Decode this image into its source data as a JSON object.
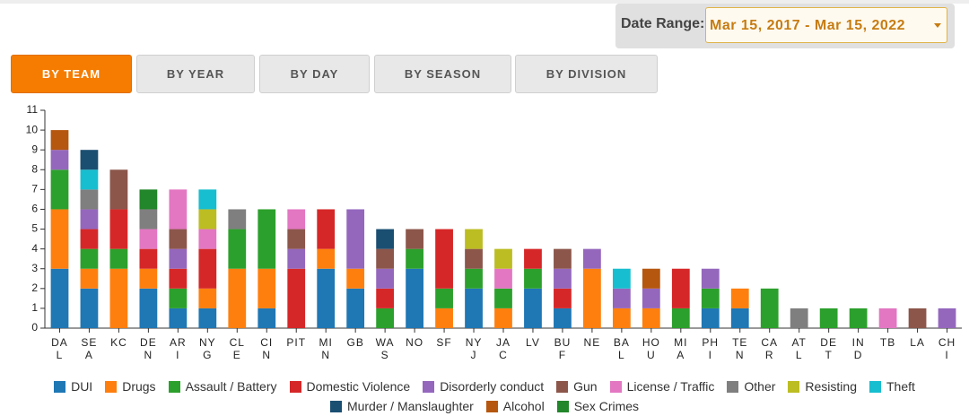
{
  "ui": {
    "date_label": "Date Range:",
    "date_value": "Mar 15, 2017 - Mar 15, 2022",
    "tabs": [
      "BY TEAM",
      "BY YEAR",
      "BY DAY",
      "BY SEASON",
      "BY DIVISION"
    ]
  },
  "chart_data": {
    "type": "stacked_bar",
    "categories": [
      "DAL",
      "SEA",
      "KC",
      "DEN",
      "ARI",
      "NYG",
      "CLE",
      "CIN",
      "PIT",
      "MIN",
      "GB",
      "WAS",
      "NO",
      "SF",
      "NYJ",
      "JAC",
      "LV",
      "BUF",
      "NE",
      "BAL",
      "HOU",
      "MIA",
      "PHI",
      "TEN",
      "CAR",
      "ATL",
      "DET",
      "IND",
      "TB",
      "LA",
      "CHI"
    ],
    "ylim": [
      0,
      11
    ],
    "yticks": [
      0,
      1,
      2,
      3,
      4,
      5,
      6,
      7,
      8,
      9,
      10,
      11
    ],
    "series": [
      {
        "name": "DUI",
        "color": "#1f77b4",
        "values": [
          3,
          2,
          0,
          2,
          1,
          1,
          0,
          1,
          0,
          3,
          2,
          0,
          3,
          0,
          2,
          0,
          2,
          1,
          0,
          0,
          0,
          0,
          1,
          1,
          0,
          0,
          0,
          0,
          0,
          0,
          0
        ]
      },
      {
        "name": "Drugs",
        "color": "#ff7f0e",
        "values": [
          3,
          1,
          3,
          1,
          0,
          1,
          3,
          2,
          0,
          1,
          1,
          0,
          0,
          1,
          0,
          1,
          0,
          0,
          3,
          1,
          1,
          0,
          0,
          1,
          0,
          0,
          0,
          0,
          0,
          0,
          0
        ]
      },
      {
        "name": "Assault / Battery",
        "color": "#2ca02c",
        "values": [
          2,
          1,
          1,
          0,
          1,
          0,
          2,
          3,
          0,
          0,
          0,
          1,
          1,
          1,
          1,
          1,
          1,
          0,
          0,
          0,
          0,
          1,
          1,
          0,
          2,
          0,
          1,
          1,
          0,
          0,
          0
        ]
      },
      {
        "name": "Domestic Violence",
        "color": "#d62728",
        "values": [
          0,
          1,
          2,
          1,
          1,
          2,
          0,
          0,
          3,
          2,
          0,
          1,
          0,
          3,
          0,
          0,
          1,
          1,
          0,
          0,
          0,
          2,
          0,
          0,
          0,
          0,
          0,
          0,
          0,
          0,
          0
        ]
      },
      {
        "name": "Disorderly conduct",
        "color": "#9467bd",
        "values": [
          1,
          1,
          0,
          0,
          1,
          0,
          0,
          0,
          1,
          0,
          3,
          1,
          0,
          0,
          0,
          0,
          0,
          1,
          1,
          1,
          1,
          0,
          1,
          0,
          0,
          0,
          0,
          0,
          0,
          0,
          1
        ]
      },
      {
        "name": "Gun",
        "color": "#8c564b",
        "values": [
          0,
          0,
          2,
          0,
          1,
          0,
          0,
          0,
          1,
          0,
          0,
          1,
          1,
          0,
          1,
          0,
          0,
          1,
          0,
          0,
          0,
          0,
          0,
          0,
          0,
          0,
          0,
          0,
          0,
          1,
          0
        ]
      },
      {
        "name": "License / Traffic",
        "color": "#e377c2",
        "values": [
          0,
          0,
          0,
          1,
          2,
          1,
          0,
          0,
          1,
          0,
          0,
          0,
          0,
          0,
          0,
          1,
          0,
          0,
          0,
          0,
          0,
          0,
          0,
          0,
          0,
          0,
          0,
          0,
          1,
          0,
          0
        ]
      },
      {
        "name": "Other",
        "color": "#7f7f7f",
        "values": [
          0,
          1,
          0,
          1,
          0,
          0,
          1,
          0,
          0,
          0,
          0,
          0,
          0,
          0,
          0,
          0,
          0,
          0,
          0,
          0,
          0,
          0,
          0,
          0,
          0,
          1,
          0,
          0,
          0,
          0,
          0
        ]
      },
      {
        "name": "Resisting",
        "color": "#bcbd22",
        "values": [
          0,
          0,
          0,
          0,
          0,
          1,
          0,
          0,
          0,
          0,
          0,
          0,
          0,
          0,
          1,
          1,
          0,
          0,
          0,
          0,
          0,
          0,
          0,
          0,
          0,
          0,
          0,
          0,
          0,
          0,
          0
        ]
      },
      {
        "name": "Theft",
        "color": "#17becf",
        "values": [
          0,
          1,
          0,
          0,
          0,
          1,
          0,
          0,
          0,
          0,
          0,
          0,
          0,
          0,
          0,
          0,
          0,
          0,
          0,
          1,
          0,
          0,
          0,
          0,
          0,
          0,
          0,
          0,
          0,
          0,
          0
        ]
      },
      {
        "name": "Murder / Manslaughter",
        "color": "#1b4f72",
        "values": [
          0,
          1,
          0,
          0,
          0,
          0,
          0,
          0,
          0,
          0,
          0,
          1,
          0,
          0,
          0,
          0,
          0,
          0,
          0,
          0,
          0,
          0,
          0,
          0,
          0,
          0,
          0,
          0,
          0,
          0,
          0
        ]
      },
      {
        "name": "Alcohol",
        "color": "#b5570f",
        "values": [
          1,
          0,
          0,
          0,
          0,
          0,
          0,
          0,
          0,
          0,
          0,
          0,
          0,
          0,
          0,
          0,
          0,
          0,
          0,
          0,
          1,
          0,
          0,
          0,
          0,
          0,
          0,
          0,
          0,
          0,
          0
        ]
      },
      {
        "name": "Sex Crimes",
        "color": "#22862a",
        "values": [
          0,
          0,
          0,
          1,
          0,
          0,
          0,
          0,
          0,
          0,
          0,
          0,
          0,
          0,
          0,
          0,
          0,
          0,
          0,
          0,
          0,
          0,
          0,
          0,
          0,
          0,
          0,
          0,
          0,
          0,
          0
        ]
      }
    ]
  }
}
